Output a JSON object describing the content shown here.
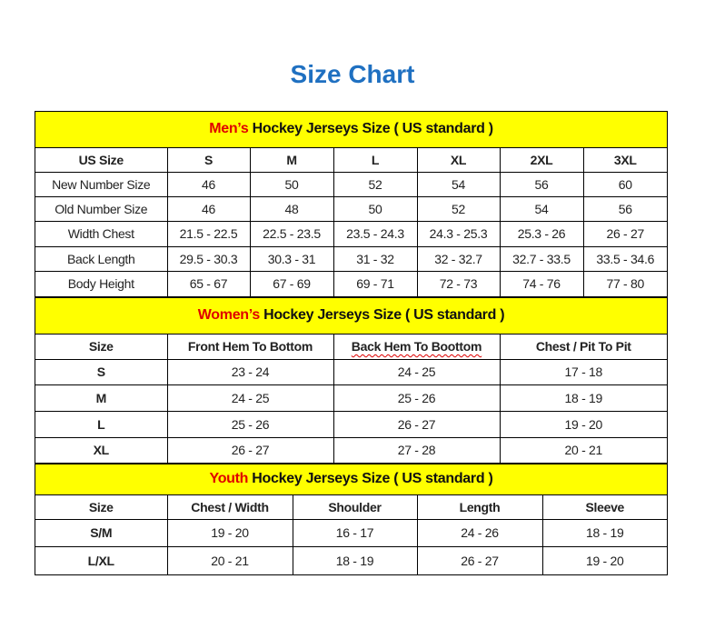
{
  "title": "Size Chart",
  "colors": {
    "title": "#1f70c1",
    "header_bg": "#ffff00",
    "highlight": "#e00000"
  },
  "sections": [
    {
      "key": "men",
      "highlight": "Men’s",
      "heading": " Hockey Jerseys Size ( US standard )",
      "head_height": 39,
      "columns": [
        "US Size",
        "S",
        "M",
        "L",
        "XL",
        "2XL",
        "3XL"
      ],
      "col_widths": [
        145,
        91,
        92,
        92,
        91,
        92,
        92
      ],
      "row_heights": [
        27,
        27,
        27,
        28,
        27,
        28
      ],
      "label_bold": false,
      "rows": [
        [
          "New Number Size",
          "46",
          "50",
          "52",
          "54",
          "56",
          "60"
        ],
        [
          "Old Number Size",
          "46",
          "48",
          "50",
          "52",
          "54",
          "56"
        ],
        [
          "Width Chest",
          "21.5 - 22.5",
          "22.5 - 23.5",
          "23.5 - 24.3",
          "24.3 - 25.3",
          "25.3 - 26",
          "26 - 27"
        ],
        [
          "Back Length",
          "29.5 - 30.3",
          "30.3 - 31",
          "31 - 32",
          "32 - 32.7",
          "32.7 - 33.5",
          "33.5 - 34.6"
        ],
        [
          "Body Height",
          "65 - 67",
          "67 - 69",
          "69 - 71",
          "72 - 73",
          "74 - 76",
          "77 - 80"
        ]
      ]
    },
    {
      "key": "women",
      "highlight": "Women’s",
      "heading": " Hockey Jerseys Size ( US standard )",
      "head_height": 40,
      "columns": [
        "Size",
        "Front Hem To Bottom",
        "Back Hem To Boottom",
        "Chest / Pit To Pit"
      ],
      "col_widths": [
        145,
        183,
        183,
        184
      ],
      "row_heights": [
        28,
        28,
        29,
        29,
        28
      ],
      "label_bold": true,
      "rows": [
        [
          "S",
          "23 - 24",
          "24 - 25",
          "17 - 18"
        ],
        [
          "M",
          "24 - 25",
          "25 - 26",
          "18 - 19"
        ],
        [
          "L",
          "25 - 26",
          "26 - 27",
          "19 - 20"
        ],
        [
          "XL",
          "26 - 27",
          "27 - 28",
          "20 - 21"
        ]
      ]
    },
    {
      "key": "youth",
      "highlight": "Youth",
      "heading": " Hockey Jerseys Size ( US standard )",
      "head_height": 34,
      "columns": [
        "Size",
        "Chest / Width",
        "Shoulder",
        "Length",
        "Sleeve"
      ],
      "col_widths": [
        145,
        138,
        137,
        138,
        137
      ],
      "row_heights": [
        27,
        30,
        31
      ],
      "label_bold": true,
      "rows": [
        [
          "S/M",
          "19 - 20",
          "16 - 17",
          "24 - 26",
          "18 - 19"
        ],
        [
          "L/XL",
          "20 - 21",
          "18 - 19",
          "26 - 27",
          "19 - 20"
        ]
      ]
    }
  ]
}
